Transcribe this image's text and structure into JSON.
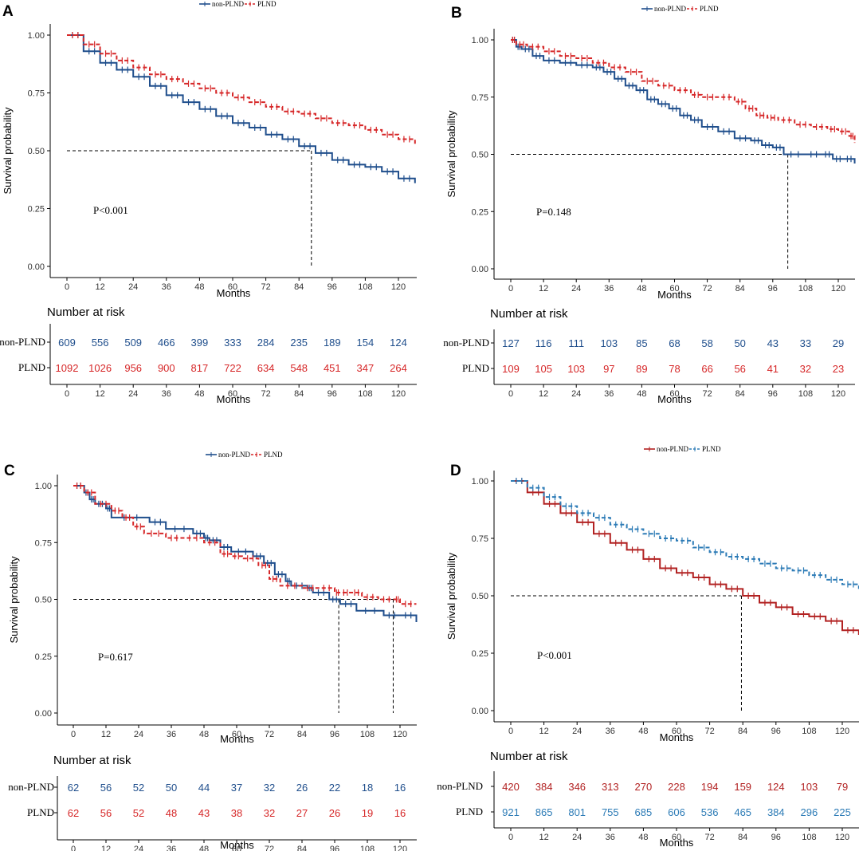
{
  "figure": {
    "panels": [
      {
        "letter": "A",
        "pvalue": "P<0.001",
        "groups": [
          "non-PLND",
          "PLND"
        ],
        "risk_title": "Number at risk"
      },
      {
        "letter": "B",
        "pvalue": "P=0.148",
        "groups": [
          "non-PLND",
          "PLND"
        ],
        "risk_title": "Number at risk"
      },
      {
        "letter": "C",
        "pvalue": "P=0.617",
        "groups": [
          "non-PLND",
          "PLND"
        ],
        "risk_title": "Number at risk"
      },
      {
        "letter": "D",
        "pvalue": "P<0.001",
        "groups": [
          "non-PLND",
          "PLND"
        ],
        "risk_title": "Number at risk"
      }
    ]
  },
  "chart_data": [
    {
      "type": "line",
      "panel": "A",
      "title": "",
      "xlabel": "Months",
      "ylabel": "Survival probability",
      "xlim": [
        -7,
        126
      ],
      "ylim": [
        0,
        1
      ],
      "x_ticks": [
        0,
        12,
        24,
        36,
        48,
        60,
        72,
        84,
        96,
        108,
        120
      ],
      "y_ticks": [
        "0.00",
        "0.25",
        "0.50",
        "0.75",
        "1.00"
      ],
      "legend": [
        "non-PLND",
        "PLND"
      ],
      "legend_position": "top",
      "pvalue": "P<0.001",
      "median_survival": [
        88.5
      ],
      "reference_line": 0.5,
      "series": [
        {
          "name": "non-PLND",
          "color": "#1f4e8c",
          "dashed": false,
          "x": [
            0,
            6,
            12,
            18,
            24,
            30,
            36,
            42,
            48,
            54,
            60,
            66,
            72,
            78,
            84,
            90,
            96,
            102,
            108,
            114,
            120,
            126
          ],
          "values": [
            1.0,
            0.93,
            0.88,
            0.85,
            0.82,
            0.78,
            0.74,
            0.71,
            0.68,
            0.65,
            0.62,
            0.6,
            0.57,
            0.55,
            0.52,
            0.49,
            0.46,
            0.44,
            0.43,
            0.41,
            0.38,
            0.36
          ]
        },
        {
          "name": "PLND",
          "color": "#d62728",
          "dashed": true,
          "x": [
            0,
            6,
            12,
            18,
            24,
            30,
            36,
            42,
            48,
            54,
            60,
            66,
            72,
            78,
            84,
            90,
            96,
            102,
            108,
            114,
            120,
            126
          ],
          "values": [
            1.0,
            0.96,
            0.92,
            0.89,
            0.86,
            0.83,
            0.81,
            0.79,
            0.77,
            0.75,
            0.73,
            0.71,
            0.69,
            0.67,
            0.66,
            0.64,
            0.62,
            0.61,
            0.59,
            0.57,
            0.55,
            0.53
          ]
        }
      ],
      "risk_table": {
        "x": [
          0,
          12,
          24,
          36,
          48,
          60,
          72,
          84,
          96,
          108,
          120
        ],
        "rows": [
          {
            "name": "non-PLND",
            "values": [
              609,
              556,
              509,
              466,
              399,
              333,
              284,
              235,
              189,
              154,
              124
            ]
          },
          {
            "name": "PLND",
            "values": [
              1092,
              1026,
              956,
              900,
              817,
              722,
              634,
              548,
              451,
              347,
              264
            ]
          }
        ]
      }
    },
    {
      "type": "line",
      "panel": "B",
      "title": "",
      "xlabel": "Months",
      "ylabel": "Survival probability",
      "xlim": [
        -7,
        126
      ],
      "ylim": [
        0,
        1
      ],
      "x_ticks": [
        0,
        12,
        24,
        36,
        48,
        60,
        72,
        84,
        96,
        108,
        120
      ],
      "y_ticks": [
        "0.00",
        "0.25",
        "0.50",
        "0.75",
        "1.00"
      ],
      "legend": [
        "non-PLND",
        "PLND"
      ],
      "legend_position": "top",
      "pvalue": "P=0.148",
      "median_survival": [
        101.5
      ],
      "reference_line": 0.5,
      "series": [
        {
          "name": "non-PLND",
          "color": "#1f4e8c",
          "dashed": false,
          "x": [
            0,
            2,
            4,
            8,
            12,
            18,
            24,
            30,
            34,
            38,
            42,
            46,
            50,
            54,
            58,
            62,
            66,
            70,
            76,
            82,
            88,
            92,
            96,
            100,
            108,
            114,
            118,
            122,
            126
          ],
          "values": [
            1.0,
            0.97,
            0.96,
            0.93,
            0.91,
            0.9,
            0.89,
            0.88,
            0.86,
            0.83,
            0.8,
            0.78,
            0.74,
            0.72,
            0.7,
            0.67,
            0.65,
            0.62,
            0.6,
            0.57,
            0.56,
            0.54,
            0.53,
            0.5,
            0.5,
            0.5,
            0.48,
            0.48,
            0.46
          ]
        },
        {
          "name": "PLND",
          "color": "#d62728",
          "dashed": true,
          "x": [
            0,
            2,
            6,
            12,
            18,
            24,
            30,
            36,
            42,
            48,
            54,
            60,
            66,
            70,
            76,
            82,
            86,
            90,
            94,
            98,
            104,
            110,
            116,
            120,
            124,
            126
          ],
          "values": [
            1.0,
            0.98,
            0.97,
            0.95,
            0.93,
            0.92,
            0.9,
            0.88,
            0.86,
            0.82,
            0.8,
            0.78,
            0.76,
            0.75,
            0.75,
            0.73,
            0.7,
            0.67,
            0.66,
            0.65,
            0.63,
            0.62,
            0.61,
            0.6,
            0.58,
            0.55
          ]
        }
      ],
      "risk_table": {
        "x": [
          0,
          12,
          24,
          36,
          48,
          60,
          72,
          84,
          96,
          108,
          120
        ],
        "rows": [
          {
            "name": "non-PLND",
            "values": [
              127,
              116,
              111,
              103,
              85,
              68,
              58,
              50,
              43,
              33,
              29
            ]
          },
          {
            "name": "PLND",
            "values": [
              109,
              105,
              103,
              97,
              89,
              78,
              66,
              56,
              41,
              32,
              23
            ]
          }
        ]
      }
    },
    {
      "type": "line",
      "panel": "C",
      "title": "",
      "xlabel": "Months",
      "ylabel": "Survival probability",
      "xlim": [
        -7,
        126
      ],
      "ylim": [
        0,
        1
      ],
      "x_ticks": [
        0,
        12,
        24,
        36,
        48,
        60,
        72,
        84,
        96,
        108,
        120
      ],
      "y_ticks": [
        "0.00",
        "0.25",
        "0.50",
        "0.75",
        "1.00"
      ],
      "legend": [
        "non-PLND",
        "PLND"
      ],
      "legend_position": "top",
      "pvalue": "P=0.617",
      "median_survival": [
        97.5,
        117.5
      ],
      "reference_line": 0.5,
      "series": [
        {
          "name": "non-PLND",
          "color": "#1f4e8c",
          "dashed": false,
          "x": [
            0,
            4,
            6,
            8,
            12,
            14,
            28,
            34,
            44,
            48,
            50,
            54,
            58,
            66,
            70,
            74,
            78,
            80,
            86,
            88,
            94,
            98,
            104,
            114,
            120,
            126
          ],
          "values": [
            1.0,
            0.97,
            0.94,
            0.92,
            0.9,
            0.86,
            0.84,
            0.81,
            0.79,
            0.77,
            0.76,
            0.73,
            0.71,
            0.69,
            0.66,
            0.61,
            0.58,
            0.56,
            0.55,
            0.53,
            0.5,
            0.48,
            0.45,
            0.43,
            0.43,
            0.4
          ]
        },
        {
          "name": "PLND",
          "color": "#d62728",
          "dashed": true,
          "x": [
            0,
            4,
            8,
            14,
            18,
            22,
            26,
            34,
            40,
            48,
            54,
            58,
            62,
            68,
            72,
            76,
            84,
            90,
            96,
            98,
            102,
            106,
            112,
            118,
            120,
            126
          ],
          "values": [
            1.0,
            0.97,
            0.92,
            0.89,
            0.86,
            0.82,
            0.79,
            0.77,
            0.77,
            0.75,
            0.7,
            0.69,
            0.68,
            0.65,
            0.59,
            0.56,
            0.55,
            0.55,
            0.53,
            0.53,
            0.53,
            0.51,
            0.5,
            0.5,
            0.48,
            0.48
          ]
        }
      ],
      "risk_table": {
        "x": [
          0,
          12,
          24,
          36,
          48,
          60,
          72,
          84,
          96,
          108,
          120
        ],
        "rows": [
          {
            "name": "non-PLND",
            "values": [
              62,
              56,
              52,
              50,
              44,
              37,
              32,
              26,
              22,
              18,
              16
            ]
          },
          {
            "name": "PLND",
            "values": [
              62,
              56,
              52,
              48,
              43,
              38,
              32,
              27,
              26,
              19,
              16
            ]
          }
        ]
      }
    },
    {
      "type": "line",
      "panel": "D",
      "title": "",
      "xlabel": "Months",
      "ylabel": "Survival probability",
      "xlim": [
        -7,
        126
      ],
      "ylim": [
        0,
        1
      ],
      "x_ticks": [
        0,
        12,
        24,
        36,
        48,
        60,
        72,
        84,
        96,
        108,
        120
      ],
      "y_ticks": [
        "0.00",
        "0.25",
        "0.50",
        "0.75",
        "1.00"
      ],
      "legend": [
        "non-PLND",
        "PLND"
      ],
      "legend_position": "top",
      "pvalue": "P<0.001",
      "median_survival": [
        83.5
      ],
      "reference_line": 0.5,
      "series": [
        {
          "name": "non-PLND",
          "color": "#b22222",
          "dashed": false,
          "x": [
            0,
            6,
            12,
            18,
            24,
            30,
            36,
            42,
            48,
            54,
            60,
            66,
            72,
            78,
            84,
            90,
            96,
            102,
            108,
            114,
            120,
            126
          ],
          "values": [
            1.0,
            0.95,
            0.9,
            0.86,
            0.82,
            0.77,
            0.73,
            0.7,
            0.66,
            0.62,
            0.6,
            0.58,
            0.55,
            0.53,
            0.5,
            0.47,
            0.45,
            0.42,
            0.41,
            0.39,
            0.35,
            0.33
          ]
        },
        {
          "name": "PLND",
          "color": "#2c7bb6",
          "dashed": true,
          "x": [
            0,
            6,
            12,
            18,
            24,
            30,
            36,
            42,
            48,
            54,
            60,
            66,
            72,
            78,
            84,
            90,
            96,
            102,
            108,
            114,
            120,
            126
          ],
          "values": [
            1.0,
            0.97,
            0.93,
            0.89,
            0.86,
            0.84,
            0.81,
            0.79,
            0.77,
            0.75,
            0.74,
            0.71,
            0.69,
            0.67,
            0.66,
            0.64,
            0.62,
            0.61,
            0.59,
            0.57,
            0.55,
            0.53
          ]
        }
      ],
      "risk_table": {
        "x": [
          0,
          12,
          24,
          36,
          48,
          60,
          72,
          84,
          96,
          108,
          120
        ],
        "rows": [
          {
            "name": "non-PLND",
            "values": [
              420,
              384,
              346,
              313,
              270,
              228,
              194,
              159,
              124,
              103,
              79
            ]
          },
          {
            "name": "PLND",
            "values": [
              921,
              865,
              801,
              755,
              685,
              606,
              536,
              465,
              384,
              296,
              225
            ]
          }
        ]
      }
    }
  ]
}
